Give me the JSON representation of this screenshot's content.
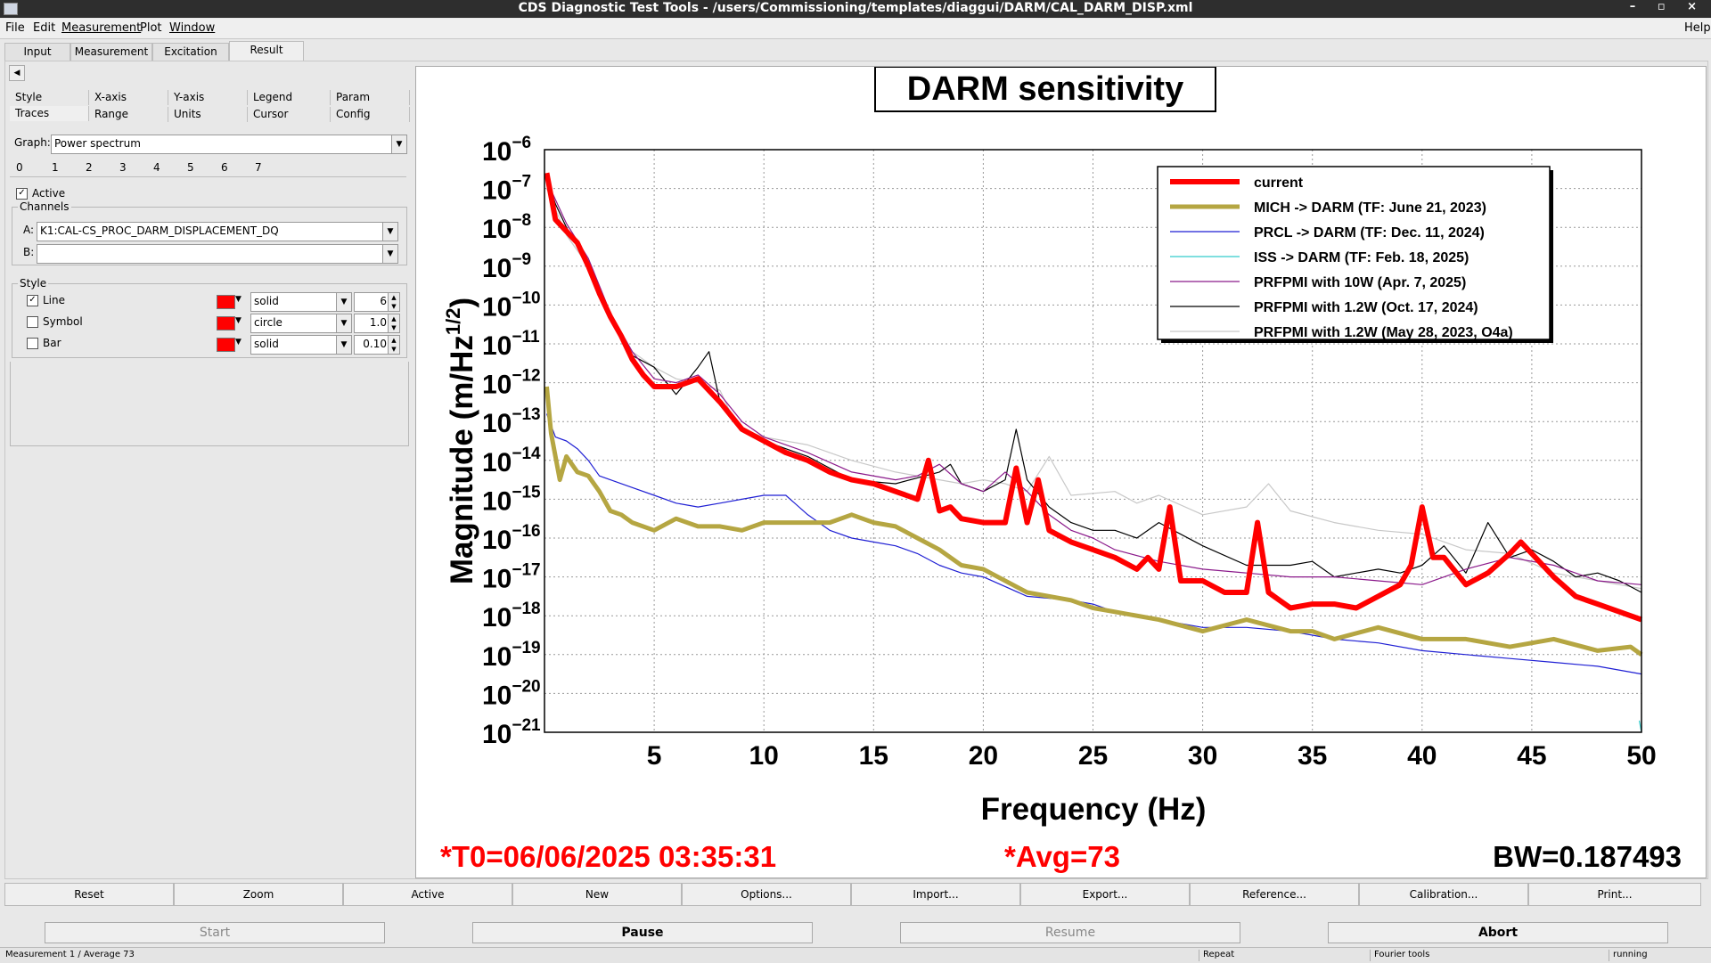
{
  "window": {
    "title": "CDS Diagnostic Test Tools - /users/Commissioning/templates/diaggui/DARM/CAL_DARM_DISP.xml",
    "controls": "– ▫ ×"
  },
  "menubar": {
    "items": [
      "File",
      "Edit",
      "Measurement",
      "Plot",
      "Window"
    ],
    "help": "Help"
  },
  "tabs": [
    "Input",
    "Measurement",
    "Excitation",
    "Result"
  ],
  "left_panel": {
    "collapse_glyph": "◀",
    "subtabs_row1": [
      "Style",
      "X-axis",
      "Y-axis",
      "Legend",
      "Param"
    ],
    "subtabs_row2": [
      "Traces",
      "Range",
      "Units",
      "Cursor",
      "Config"
    ],
    "graph_label": "Graph:",
    "graph_value": "Power spectrum",
    "trace_tabs": [
      "0",
      "1",
      "2",
      "3",
      "4",
      "5",
      "6",
      "7"
    ],
    "active_label": "Active",
    "channels_title": "Channels",
    "channel_a_label": "A:",
    "channel_a_value": "K1:CAL-CS_PROC_DARM_DISPLACEMENT_DQ",
    "channel_b_label": "B:",
    "channel_b_value": "",
    "style_title": "Style",
    "style_rows": [
      {
        "label": "Line",
        "checked": true,
        "color": "#ff0000",
        "kind": "solid",
        "value": "6"
      },
      {
        "label": "Symbol",
        "checked": false,
        "color": "#ff0000",
        "kind": "circle",
        "value": "1.0"
      },
      {
        "label": "Bar",
        "checked": false,
        "color": "#ff0000",
        "kind": "solid",
        "value": "0.10"
      }
    ]
  },
  "chart_data": {
    "type": "line",
    "title": "DARM sensitivity",
    "xlabel": "Frequency (Hz)",
    "ylabel": "Magnitude (m/Hz",
    "ylabel_sup": "1/2",
    "ylabel_end": ")",
    "xlim": [
      0,
      50
    ],
    "ylim_log10": [
      -21,
      -6
    ],
    "log_y": true,
    "grid": true,
    "legend_position": "top-right",
    "xticks": [
      5,
      10,
      15,
      20,
      25,
      30,
      35,
      40,
      45,
      50
    ],
    "yticks_exp": [
      -6,
      -7,
      -8,
      -9,
      -10,
      -11,
      -12,
      -13,
      -14,
      -15,
      -16,
      -17,
      -18,
      -19,
      -20,
      -21
    ],
    "ytick_base": "10",
    "series": [
      {
        "name": "current",
        "color": "#ff0000",
        "x": [
          0.1,
          0.5,
          1,
          1.5,
          2,
          2.5,
          3,
          3.5,
          4,
          4.5,
          5,
          6,
          7,
          7.5,
          8,
          9,
          10,
          11,
          12,
          13,
          14,
          15,
          16,
          17,
          17.5,
          18,
          18.5,
          19,
          20,
          21,
          21.5,
          22,
          22.5,
          23,
          24,
          25,
          26,
          27,
          27.5,
          28,
          28.5,
          29,
          30,
          31,
          32,
          32.5,
          33,
          33.5,
          34,
          35,
          36,
          37,
          38,
          39,
          39.5,
          40,
          40.5,
          41,
          42,
          43,
          44,
          44.5,
          45,
          46,
          47,
          48,
          49,
          50
        ],
        "y_log10": [
          -6.6,
          -7.8,
          -8.1,
          -8.4,
          -9,
          -9.7,
          -10.3,
          -10.8,
          -11.4,
          -11.8,
          -12.1,
          -12.1,
          -11.9,
          -12.2,
          -12.5,
          -13.2,
          -13.5,
          -13.8,
          -14,
          -14.3,
          -14.5,
          -14.6,
          -14.8,
          -15,
          -14,
          -15.3,
          -15.2,
          -15.5,
          -15.6,
          -15.6,
          -14.2,
          -15.6,
          -14.5,
          -15.8,
          -16.1,
          -16.3,
          -16.5,
          -16.8,
          -16.5,
          -16.8,
          -15.2,
          -17.1,
          -17.1,
          -17.4,
          -17.4,
          -15.6,
          -17.4,
          -17.6,
          -17.8,
          -17.7,
          -17.7,
          -17.8,
          -17.5,
          -17.2,
          -16.7,
          -15.2,
          -16.5,
          -16.5,
          -17.2,
          -16.9,
          -16.4,
          -16.1,
          -16.4,
          -17,
          -17.5,
          -17.7,
          -17.9,
          -18.1
        ]
      },
      {
        "name": "MICH -> DARM (TF: June 21, 2023)",
        "color": "#b5a642",
        "x": [
          0.1,
          0.3,
          0.7,
          1,
          1.5,
          2,
          2.5,
          3,
          3.5,
          4,
          5,
          6,
          7,
          8,
          9,
          10,
          11,
          12,
          13,
          14,
          15,
          16,
          17,
          18,
          19,
          20,
          22,
          24,
          25,
          26,
          28,
          30,
          32,
          34,
          35,
          36,
          38,
          40,
          42,
          44,
          46,
          48,
          49.5,
          50
        ],
        "y_log10": [
          -12.1,
          -13.3,
          -14.5,
          -13.9,
          -14.3,
          -14.4,
          -14.8,
          -15.3,
          -15.4,
          -15.6,
          -15.8,
          -15.5,
          -15.7,
          -15.7,
          -15.8,
          -15.6,
          -15.6,
          -15.6,
          -15.6,
          -15.4,
          -15.6,
          -15.7,
          -16,
          -16.3,
          -16.7,
          -16.8,
          -17.4,
          -17.6,
          -17.8,
          -17.9,
          -18.1,
          -18.4,
          -18.1,
          -18.4,
          -18.4,
          -18.6,
          -18.3,
          -18.6,
          -18.6,
          -18.8,
          -18.6,
          -18.9,
          -18.8,
          -19
        ]
      },
      {
        "name": "PRCL -> DARM (TF: Dec. 11, 2024)",
        "color": "#1f1fd4",
        "x": [
          0.1,
          0.5,
          1,
          1.5,
          2,
          2.5,
          3,
          4,
          5,
          6,
          7,
          8,
          9,
          10,
          11,
          12,
          13,
          14,
          15,
          16,
          17,
          18,
          19,
          20,
          22,
          24,
          25,
          26,
          28,
          30,
          32,
          34,
          36,
          38,
          40,
          42,
          44,
          46,
          48,
          50
        ],
        "y_log10": [
          -12.8,
          -13.4,
          -13.5,
          -13.7,
          -14,
          -14.4,
          -14.5,
          -14.7,
          -14.9,
          -15.1,
          -15.2,
          -15.1,
          -15,
          -14.9,
          -14.9,
          -15.4,
          -15.8,
          -16,
          -16.1,
          -16.2,
          -16.4,
          -16.7,
          -16.9,
          -17,
          -17.5,
          -17.6,
          -17.7,
          -17.9,
          -18.1,
          -18.3,
          -18.3,
          -18.4,
          -18.6,
          -18.7,
          -18.9,
          -19,
          -19.1,
          -19.2,
          -19.3,
          -19.5
        ]
      },
      {
        "name": "ISS -> DARM (TF: Feb. 18, 2025)",
        "color": "#33cccc",
        "x": [
          49.9,
          50
        ],
        "y_log10": [
          -20.7,
          -21
        ]
      },
      {
        "name": "PRFPMI with 10W  (Apr. 7, 2025)",
        "color": "#8b1a8b",
        "x": [
          0.1,
          1,
          2,
          3,
          4,
          5,
          6,
          7,
          8,
          9,
          10,
          12,
          14,
          16,
          17,
          18,
          19,
          20,
          21,
          22,
          23,
          24,
          25,
          26,
          28,
          30,
          32,
          34,
          36,
          38,
          40,
          42,
          44,
          46,
          48,
          50
        ],
        "y_log10": [
          -6.8,
          -7.9,
          -8.8,
          -10.2,
          -11.2,
          -11.9,
          -12,
          -11.8,
          -12.3,
          -13,
          -13.4,
          -13.8,
          -14.3,
          -14.5,
          -14.4,
          -14.1,
          -14.6,
          -14.8,
          -14.3,
          -14.8,
          -15.4,
          -15.8,
          -16,
          -16.3,
          -16.6,
          -16.8,
          -16.9,
          -17,
          -17,
          -17.1,
          -17.2,
          -16.8,
          -16.5,
          -16.7,
          -17.1,
          -17.2
        ]
      },
      {
        "name": "PRFPMI with 1.2W  (Oct. 17, 2024)",
        "color": "#000000",
        "x": [
          0.1,
          0.5,
          1,
          2,
          3,
          4,
          5,
          6,
          7,
          7.5,
          8,
          9,
          10,
          12,
          14,
          16,
          18,
          18.5,
          19,
          20,
          21,
          21.5,
          22,
          23,
          24,
          25,
          26,
          27,
          28,
          30,
          32,
          34,
          35,
          36,
          37,
          38,
          39,
          40,
          41,
          42,
          43,
          44,
          45,
          46,
          47,
          48,
          49,
          50
        ],
        "y_log10": [
          -6.7,
          -7.4,
          -8,
          -8.9,
          -10.3,
          -11.3,
          -11.6,
          -12.3,
          -11.6,
          -11.2,
          -12.5,
          -13.2,
          -13.5,
          -13.9,
          -14.5,
          -14.6,
          -14.3,
          -14.1,
          -14.6,
          -14.8,
          -14.5,
          -13.2,
          -14.5,
          -15.2,
          -15.6,
          -15.8,
          -15.8,
          -16,
          -15.6,
          -16.2,
          -16.7,
          -16.7,
          -16.6,
          -17,
          -16.9,
          -16.8,
          -16.9,
          -16.7,
          -16.2,
          -16.9,
          -15.6,
          -16.5,
          -16.3,
          -16.6,
          -17,
          -16.9,
          -17.1,
          -17.4
        ]
      },
      {
        "name": "PRFPMI with 1.2W  (May 28, 2023, O4a)",
        "color": "#c8c8c8",
        "x": [
          0.1,
          1,
          2,
          3,
          4,
          5,
          6,
          7,
          8,
          8.5,
          9,
          10,
          12,
          14,
          16,
          18,
          19,
          20,
          21,
          22,
          23,
          24,
          26,
          27,
          28,
          30,
          32,
          33,
          34,
          36,
          38,
          40,
          42,
          44,
          46,
          48,
          50
        ],
        "y_log10": [
          -7,
          -8.2,
          -9,
          -10.3,
          -11.2,
          -11.6,
          -11.9,
          -12,
          -12.2,
          -12.8,
          -13.2,
          -13.4,
          -13.6,
          -14,
          -14.3,
          -14.5,
          -14.6,
          -14.5,
          -14.6,
          -14.8,
          -13.9,
          -14.9,
          -14.8,
          -15.1,
          -14.9,
          -15.4,
          -15.2,
          -14.6,
          -15.3,
          -15.6,
          -15.8,
          -15.9,
          -16.3,
          -16.4,
          -16.9,
          -17.1,
          -17.3
        ]
      }
    ],
    "footer": {
      "t0": "*T0=06/06/2025 03:35:31",
      "avg": "*Avg=73",
      "bw": "BW=0.187493"
    }
  },
  "bottom_buttons": [
    "Reset",
    "Zoom",
    "Active",
    "New",
    "Options...",
    "Import...",
    "Export...",
    "Reference...",
    "Calibration...",
    "Print..."
  ],
  "control_buttons": [
    {
      "label": "Start",
      "enabled": false
    },
    {
      "label": "Pause",
      "enabled": true
    },
    {
      "label": "Resume",
      "enabled": false
    },
    {
      "label": "Abort",
      "enabled": true
    }
  ],
  "statusbar": {
    "left": "Measurement 1 / Average 73",
    "repeat": "Repeat",
    "tool": "Fourier tools",
    "state": "running"
  }
}
